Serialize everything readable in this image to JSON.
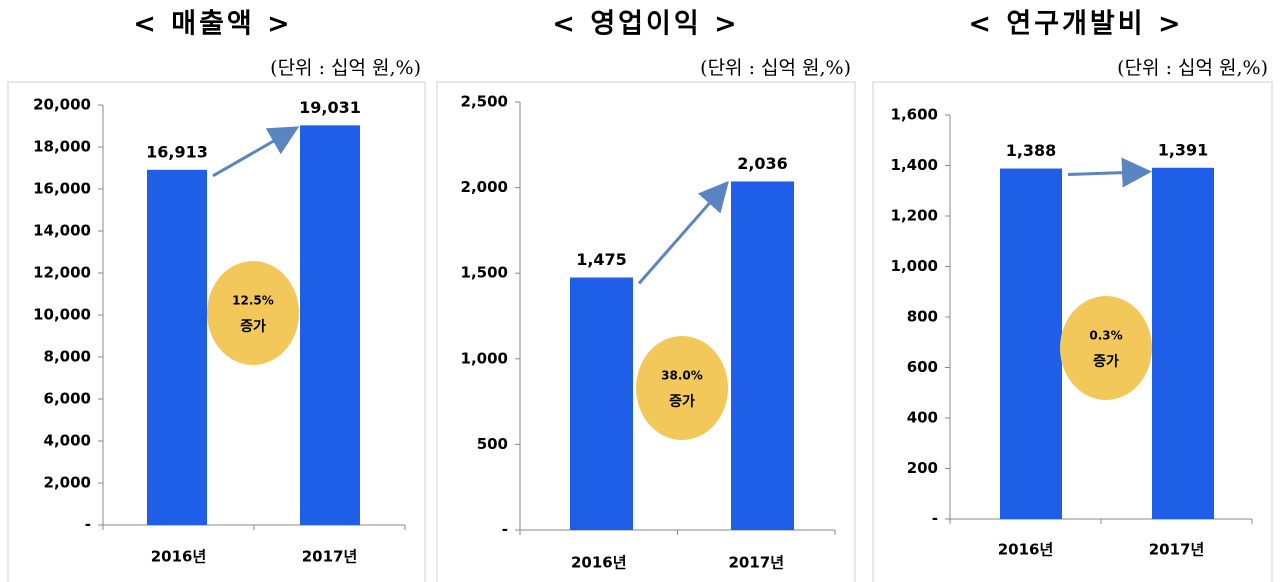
{
  "chart_data": [
    {
      "type": "bar",
      "title": "< 매출액 >",
      "subtitle": "(단위 : 십억 원,%)",
      "categories": [
        "2016년",
        "2017년"
      ],
      "values": [
        16913,
        19031
      ],
      "value_labels": [
        "16,913",
        "19,031"
      ],
      "color": "#1f5fe8",
      "ylim": [
        0,
        20000
      ],
      "yticks": [
        {
          "value": 0,
          "label": "-"
        },
        {
          "value": 2000,
          "label": "2,000"
        },
        {
          "value": 4000,
          "label": "4,000"
        },
        {
          "value": 6000,
          "label": "6,000"
        },
        {
          "value": 8000,
          "label": "8,000"
        },
        {
          "value": 10000,
          "label": "10,000"
        },
        {
          "value": 12000,
          "label": "12,000"
        },
        {
          "value": 14000,
          "label": "14,000"
        },
        {
          "value": 16000,
          "label": "16,000"
        },
        {
          "value": 18000,
          "label": "18,000"
        },
        {
          "value": 20000,
          "label": "20,000"
        }
      ],
      "annotations": [
        "12.5%",
        "증가"
      ],
      "grid": false
    },
    {
      "type": "bar",
      "title": "< 영업이익 >",
      "subtitle": "(단위 : 십억 원,%)",
      "categories": [
        "2016년",
        "2017년"
      ],
      "values": [
        1475,
        2036
      ],
      "value_labels": [
        "1,475",
        "2,036"
      ],
      "color": "#1f5fe8",
      "ylim": [
        0,
        2500
      ],
      "yticks": [
        {
          "value": 0,
          "label": "-"
        },
        500,
        {
          "value": 1000,
          "label": "1,000"
        },
        {
          "value": 1500,
          "label": "1,500"
        },
        {
          "value": 2000,
          "label": "2,000"
        },
        {
          "value": 2500,
          "label": "2,500"
        }
      ],
      "annotations": [
        "38.0%",
        "증가"
      ],
      "grid": false
    },
    {
      "type": "bar",
      "title": "< 연구개발비 >",
      "subtitle": "(단위 : 십억 원,%)",
      "categories": [
        "2016년",
        "2017년"
      ],
      "values": [
        1388,
        1391
      ],
      "value_labels": [
        "1,388",
        "1,391"
      ],
      "color": "#1f5fe8",
      "ylim": [
        0,
        1600
      ],
      "yticks": [
        {
          "value": 0,
          "label": "-"
        },
        200,
        400,
        600,
        800,
        {
          "value": 1000,
          "label": "1,000"
        },
        {
          "value": 1200,
          "label": "1,200"
        },
        {
          "value": 1400,
          "label": "1,400"
        },
        {
          "value": 1600,
          "label": "1,600"
        }
      ],
      "annotations": [
        "0.3%",
        "증가"
      ],
      "grid": false
    }
  ]
}
